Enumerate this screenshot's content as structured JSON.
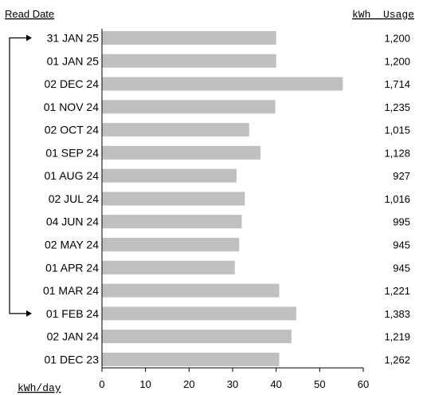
{
  "chart_data": {
    "type": "bar",
    "orientation": "horizontal",
    "row_header": "Read Date",
    "value_column_header": "kWh  Usage",
    "xlabel": "kWh/day",
    "xlim": [
      0,
      60
    ],
    "xticks": [
      0,
      10,
      20,
      30,
      40,
      50,
      60
    ],
    "grid": false,
    "bar_color": "#c0c0c0",
    "categories": [
      "31 JAN 25",
      "01 JAN 25",
      "02 DEC 24",
      "01 NOV 24",
      "02 OCT 24",
      "01 SEP 24",
      "01 AUG 24",
      "02 JUL 24",
      "04 JUN 24",
      "02 MAY 24",
      "01 APR 24",
      "01 MAR 24",
      "01 FEB 24",
      "02 JAN 24",
      "01 DEC 23"
    ],
    "values": [
      40,
      40,
      55.3,
      39.8,
      33.8,
      36.4,
      30.9,
      32.8,
      32.1,
      31.5,
      30.5,
      40.7,
      44.6,
      43.5,
      40.7
    ],
    "usage": [
      "1,200",
      "1,200",
      "1,714",
      "1,235",
      "1,015",
      "1,128",
      "927",
      "1,016",
      "995",
      "945",
      "945",
      "1,221",
      "1,383",
      "1,219",
      "1,262"
    ],
    "comparison_bracket": {
      "from": "31 JAN 25",
      "to": "01 FEB 24"
    }
  }
}
